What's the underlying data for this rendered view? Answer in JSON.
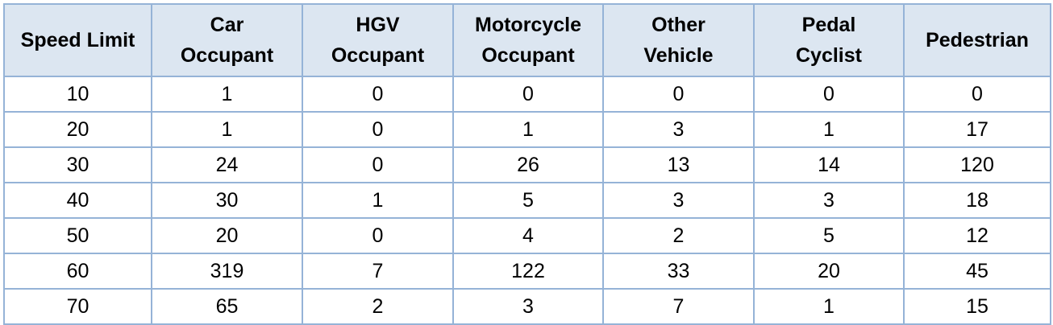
{
  "table": {
    "header": [
      [
        "Speed Limit"
      ],
      [
        "Car",
        "Occupant"
      ],
      [
        "HGV",
        "Occupant"
      ],
      [
        "Motorcycle",
        "Occupant"
      ],
      [
        "Other",
        "Vehicle"
      ],
      [
        "Pedal",
        "Cyclist"
      ],
      [
        "Pedestrian"
      ]
    ],
    "rows": [
      [
        10,
        1,
        0,
        0,
        0,
        0,
        0
      ],
      [
        20,
        1,
        0,
        1,
        3,
        1,
        17
      ],
      [
        30,
        24,
        0,
        26,
        13,
        14,
        120
      ],
      [
        40,
        30,
        1,
        5,
        3,
        3,
        18
      ],
      [
        50,
        20,
        0,
        4,
        2,
        5,
        12
      ],
      [
        60,
        319,
        7,
        122,
        33,
        20,
        45
      ],
      [
        70,
        65,
        2,
        3,
        7,
        1,
        15
      ]
    ]
  }
}
